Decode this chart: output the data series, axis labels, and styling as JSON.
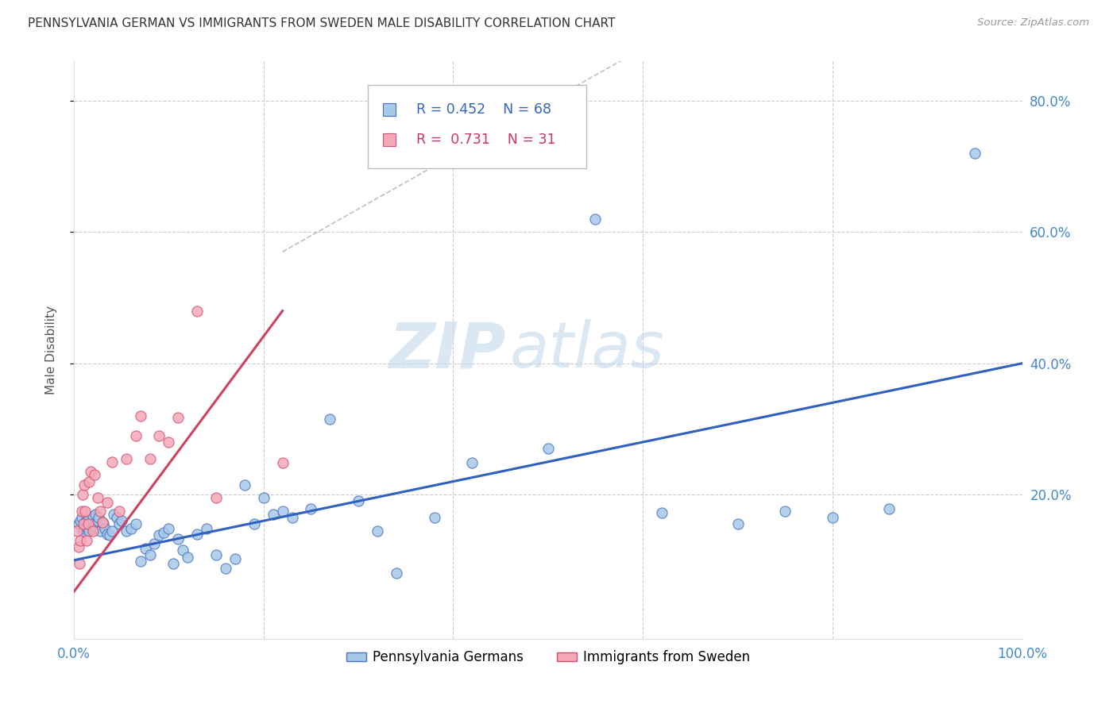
{
  "title": "PENNSYLVANIA GERMAN VS IMMIGRANTS FROM SWEDEN MALE DISABILITY CORRELATION CHART",
  "source": "Source: ZipAtlas.com",
  "ylabel": "Male Disability",
  "xlim": [
    0.0,
    1.0
  ],
  "ylim": [
    -0.02,
    0.86
  ],
  "ytick_positions": [
    0.2,
    0.4,
    0.6,
    0.8
  ],
  "ytick_labels": [
    "20.0%",
    "40.0%",
    "60.0%",
    "80.0%"
  ],
  "xtick_positions": [
    0.0,
    0.2,
    0.4,
    0.6,
    0.8,
    1.0
  ],
  "xtick_labels": [
    "0.0%",
    "",
    "",
    "",
    "",
    "100.0%"
  ],
  "series1_color": "#a8c8e8",
  "series1_edge": "#4472c4",
  "series1_label": "Pennsylvania Germans",
  "series1_R": "0.452",
  "series1_N": "68",
  "series2_color": "#f4a8b8",
  "series2_edge": "#d45070",
  "series2_label": "Immigrants from Sweden",
  "series2_R": "0.731",
  "series2_N": "31",
  "watermark_zip": "ZIP",
  "watermark_atlas": "atlas",
  "background_color": "#ffffff",
  "grid_color": "#cccccc",
  "trendline1_color": "#3060c0",
  "trendline2_color": "#d04060",
  "refline_color": "#ccbbbb",
  "scatter1_x": [
    0.005,
    0.007,
    0.008,
    0.009,
    0.01,
    0.011,
    0.012,
    0.013,
    0.015,
    0.016,
    0.018,
    0.02,
    0.02,
    0.022,
    0.023,
    0.025,
    0.026,
    0.028,
    0.03,
    0.031,
    0.033,
    0.035,
    0.038,
    0.04,
    0.042,
    0.045,
    0.048,
    0.05,
    0.055,
    0.06,
    0.065,
    0.07,
    0.075,
    0.08,
    0.085,
    0.09,
    0.095,
    0.1,
    0.105,
    0.11,
    0.115,
    0.12,
    0.13,
    0.14,
    0.15,
    0.16,
    0.17,
    0.18,
    0.19,
    0.2,
    0.21,
    0.22,
    0.23,
    0.25,
    0.27,
    0.3,
    0.32,
    0.34,
    0.38,
    0.42,
    0.5,
    0.55,
    0.62,
    0.7,
    0.75,
    0.8,
    0.86,
    0.95
  ],
  "scatter1_y": [
    0.155,
    0.16,
    0.165,
    0.145,
    0.148,
    0.152,
    0.158,
    0.15,
    0.162,
    0.145,
    0.155,
    0.148,
    0.168,
    0.152,
    0.17,
    0.16,
    0.165,
    0.145,
    0.158,
    0.155,
    0.148,
    0.14,
    0.138,
    0.145,
    0.17,
    0.165,
    0.155,
    0.16,
    0.145,
    0.148,
    0.155,
    0.098,
    0.118,
    0.108,
    0.125,
    0.138,
    0.142,
    0.148,
    0.095,
    0.132,
    0.115,
    0.105,
    0.14,
    0.148,
    0.108,
    0.088,
    0.102,
    0.215,
    0.155,
    0.195,
    0.17,
    0.175,
    0.165,
    0.178,
    0.315,
    0.19,
    0.145,
    0.08,
    0.165,
    0.248,
    0.27,
    0.62,
    0.172,
    0.155,
    0.175,
    0.165,
    0.178,
    0.72
  ],
  "scatter2_x": [
    0.003,
    0.005,
    0.006,
    0.007,
    0.008,
    0.009,
    0.01,
    0.011,
    0.012,
    0.013,
    0.015,
    0.016,
    0.018,
    0.02,
    0.022,
    0.025,
    0.028,
    0.03,
    0.035,
    0.04,
    0.048,
    0.055,
    0.065,
    0.07,
    0.08,
    0.09,
    0.1,
    0.11,
    0.13,
    0.15,
    0.22
  ],
  "scatter2_y": [
    0.145,
    0.12,
    0.095,
    0.13,
    0.175,
    0.2,
    0.155,
    0.215,
    0.175,
    0.13,
    0.155,
    0.22,
    0.235,
    0.145,
    0.23,
    0.195,
    0.175,
    0.158,
    0.188,
    0.25,
    0.175,
    0.255,
    0.29,
    0.32,
    0.255,
    0.29,
    0.28,
    0.318,
    0.48,
    0.195,
    0.248
  ],
  "trendline1_x": [
    0.0,
    1.0
  ],
  "trendline1_y": [
    0.1,
    0.4
  ],
  "trendline2_x": [
    0.0,
    0.22
  ],
  "trendline2_y": [
    0.052,
    0.48
  ],
  "refline_x": [
    0.22,
    0.6
  ],
  "refline_y": [
    0.57,
    0.88
  ]
}
